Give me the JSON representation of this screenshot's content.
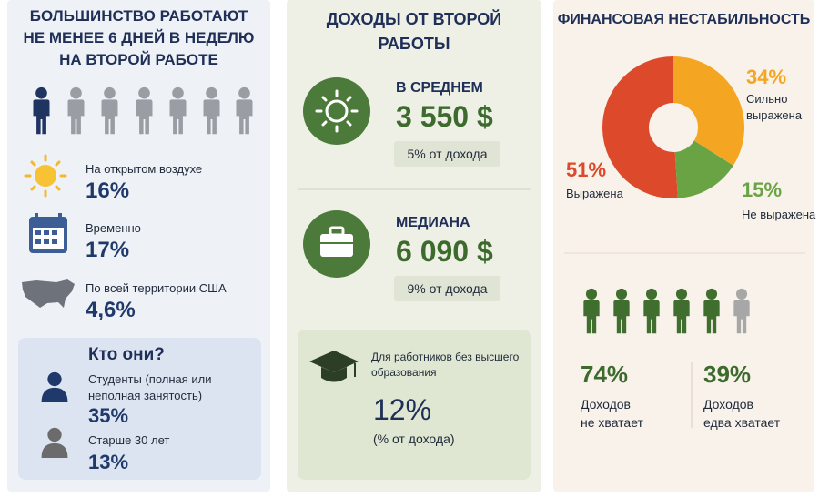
{
  "left": {
    "title": [
      "БОЛЬШИНСТВО РАБОТАЮТ",
      "НЕ МЕНЕЕ 6 ДНЕЙ В НЕДЕЛЮ",
      "НА ВТОРОЙ РАБОТЕ"
    ],
    "stats": [
      {
        "label": "На открытом воздухе",
        "value": "16%"
      },
      {
        "label": "Временно",
        "value": "17%"
      },
      {
        "label": "По всей территории США",
        "value": "4,6%"
      }
    ],
    "who": {
      "title": "Кто они?",
      "items": [
        {
          "label": [
            "Студенты (полная или",
            "неполная занятость)"
          ],
          "value": "35%"
        },
        {
          "label": [
            "Старше 30 лет"
          ],
          "value": "13%"
        }
      ]
    }
  },
  "middle": {
    "title": [
      "ДОХОДЫ ОТ ВТОРОЙ",
      "РАБОТЫ"
    ],
    "cards": [
      {
        "label": "В СРЕДНЕМ",
        "amount": "3 550 $",
        "share": "5% от дохода"
      },
      {
        "label": "МЕДИАНА",
        "amount": "6 090 $",
        "share": "9% от дохода"
      }
    ],
    "education": {
      "label": [
        "Для работников без высшего",
        "образования"
      ],
      "value": "12%",
      "note": "(% от дохода)"
    }
  },
  "right": {
    "title": "ФИНАНСОВАЯ НЕСТАБИЛЬНОСТЬ",
    "stats": [
      {
        "value": "74%",
        "label": [
          "Доходов",
          "не хватает"
        ]
      },
      {
        "value": "39%",
        "label": [
          "Доходов",
          "едва хватает"
        ]
      }
    ]
  },
  "chart_data": {
    "type": "pie",
    "categories": [
      "Сильно выражена",
      "Не выражена",
      "Выражена"
    ],
    "values": [
      34,
      15,
      51
    ],
    "value_labels": [
      "34%",
      "15%",
      "51%"
    ],
    "colors": [
      "#f4a623",
      "#6aa343",
      "#dc4a2b"
    ]
  }
}
